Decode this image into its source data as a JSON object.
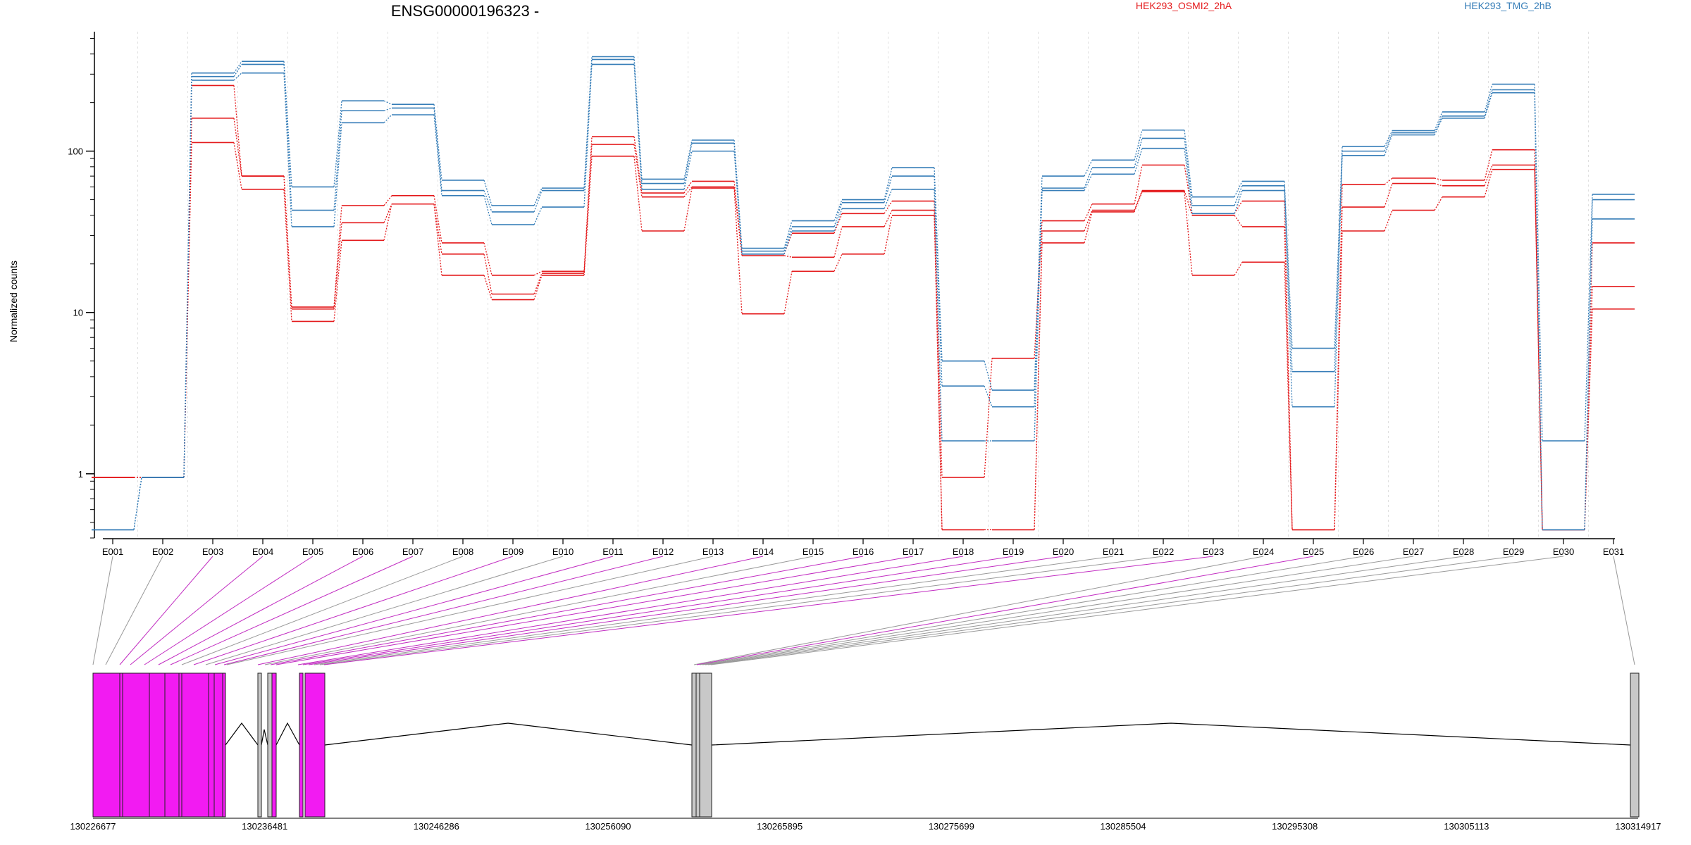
{
  "chart_data": {
    "type": "line",
    "title": "ENSG00000196323 -",
    "xlabel": "",
    "ylabel": "Normalized counts",
    "y_scale": "log",
    "ylim": [
      0.4,
      550
    ],
    "y_ticks": [
      1,
      10,
      100
    ],
    "y_tick_labels": [
      "1",
      "10",
      "100"
    ],
    "grid": "vertical-dotted",
    "legend_position": "top",
    "categories": [
      "E001",
      "E002",
      "E003",
      "E004",
      "E005",
      "E006",
      "E007",
      "E008",
      "E009",
      "E010",
      "E011",
      "E012",
      "E013",
      "E014",
      "E015",
      "E016",
      "E017",
      "E018",
      "E019",
      "E020",
      "E021",
      "E022",
      "E023",
      "E024",
      "E025",
      "E026",
      "E027",
      "E028",
      "E029",
      "E030",
      "E031"
    ],
    "series": [
      {
        "name": "HEK293_OSMI2_2hA",
        "color": "#e41a1c",
        "values": [
          0.95,
          0.95,
          255,
          70,
          10.8,
          46,
          53,
          27,
          17,
          18,
          123,
          55,
          65,
          23,
          31,
          41,
          49,
          0.95,
          5.2,
          37,
          47,
          82,
          41,
          49,
          0.45,
          62,
          68,
          66,
          102,
          0.45,
          27
        ]
      },
      {
        "name": "",
        "color": "#e41a1c",
        "values": [
          0.95,
          0.95,
          160,
          70,
          10.5,
          36,
          47,
          23,
          13,
          17.5,
          110,
          52,
          60,
          22.5,
          22,
          34,
          43,
          0.45,
          0.45,
          32,
          43,
          57,
          40,
          34,
          0.45,
          45,
          63,
          61,
          82,
          0.45,
          14.5
        ]
      },
      {
        "name": "",
        "color": "#e41a1c",
        "values": [
          0.95,
          0.95,
          113,
          58,
          8.8,
          28,
          47,
          17,
          12,
          17,
          93,
          32,
          59,
          9.8,
          18,
          23,
          40,
          0.45,
          0.45,
          27,
          42,
          56,
          17,
          20.5,
          0.45,
          32,
          43,
          52,
          77,
          0.45,
          10.5
        ]
      },
      {
        "name": "HEK293_TMG_2hB",
        "color": "#377eb8",
        "values": [
          0.45,
          0.95,
          305,
          360,
          60,
          205,
          195,
          66,
          46,
          59,
          385,
          67,
          117,
          25,
          37,
          50,
          79,
          5.0,
          3.3,
          70,
          88,
          135,
          52,
          65,
          6.0,
          107,
          134,
          175,
          260,
          1.6,
          54
        ]
      },
      {
        "name": "",
        "color": "#377eb8",
        "values": [
          0.45,
          0.95,
          290,
          345,
          43,
          178,
          185,
          57,
          42,
          57,
          370,
          63,
          112,
          24,
          34,
          48,
          70,
          3.5,
          2.6,
          59,
          79,
          120,
          46,
          61,
          4.3,
          100,
          130,
          165,
          240,
          0.45,
          50
        ]
      },
      {
        "name": "",
        "color": "#377eb8",
        "values": [
          0.45,
          0.95,
          275,
          305,
          34,
          150,
          168,
          53,
          35,
          45,
          345,
          58,
          100,
          23,
          32,
          44,
          58,
          1.6,
          1.6,
          57,
          72,
          104,
          41,
          57,
          2.6,
          94,
          126,
          160,
          230,
          0.45,
          38
        ]
      }
    ]
  },
  "gene_model": {
    "coordinates": [
      "130226677",
      "130236481",
      "130246286",
      "130256090",
      "130265895",
      "130275699",
      "130285504",
      "130295308",
      "130305113",
      "130314917"
    ],
    "highlight_color": "#f21bf2",
    "plain_color": "#c8c8c8"
  }
}
